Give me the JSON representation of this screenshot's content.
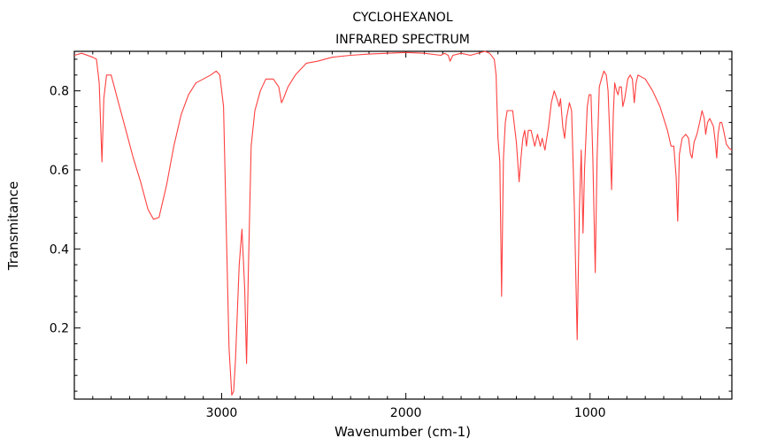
{
  "chart_data": {
    "type": "line",
    "title": "CYCLOHEXANOL",
    "subtitle": "INFRARED SPECTRUM",
    "xlabel": "Wavenumber (cm-1)",
    "ylabel": "Transmitance",
    "xlim": [
      3800,
      230
    ],
    "ylim": [
      0.02,
      0.9
    ],
    "x_reversed": true,
    "grid": false,
    "line_color": "#ff4040",
    "x_ticks": [
      {
        "value": 3000,
        "label": "3000"
      },
      {
        "value": 2000,
        "label": "2000"
      },
      {
        "value": 1000,
        "label": "1000"
      }
    ],
    "y_ticks": [
      {
        "value": 0.2,
        "label": "0.2"
      },
      {
        "value": 0.4,
        "label": "0.4"
      },
      {
        "value": 0.6,
        "label": "0.6"
      },
      {
        "value": 0.8,
        "label": "0.8"
      }
    ],
    "series": [
      {
        "points": [
          [
            3800,
            0.89
          ],
          [
            3760,
            0.895
          ],
          [
            3700,
            0.885
          ],
          [
            3680,
            0.88
          ],
          [
            3665,
            0.82
          ],
          [
            3650,
            0.62
          ],
          [
            3640,
            0.78
          ],
          [
            3625,
            0.84
          ],
          [
            3600,
            0.84
          ],
          [
            3560,
            0.77
          ],
          [
            3520,
            0.7
          ],
          [
            3480,
            0.63
          ],
          [
            3440,
            0.57
          ],
          [
            3400,
            0.5
          ],
          [
            3370,
            0.475
          ],
          [
            3340,
            0.48
          ],
          [
            3300,
            0.56
          ],
          [
            3260,
            0.66
          ],
          [
            3220,
            0.74
          ],
          [
            3180,
            0.79
          ],
          [
            3140,
            0.82
          ],
          [
            3100,
            0.83
          ],
          [
            3060,
            0.84
          ],
          [
            3030,
            0.85
          ],
          [
            3010,
            0.84
          ],
          [
            2990,
            0.76
          ],
          [
            2975,
            0.45
          ],
          [
            2960,
            0.15
          ],
          [
            2945,
            0.03
          ],
          [
            2935,
            0.04
          ],
          [
            2925,
            0.12
          ],
          [
            2905,
            0.36
          ],
          [
            2890,
            0.45
          ],
          [
            2875,
            0.3
          ],
          [
            2865,
            0.11
          ],
          [
            2855,
            0.35
          ],
          [
            2840,
            0.66
          ],
          [
            2820,
            0.75
          ],
          [
            2790,
            0.8
          ],
          [
            2760,
            0.83
          ],
          [
            2720,
            0.83
          ],
          [
            2690,
            0.81
          ],
          [
            2675,
            0.77
          ],
          [
            2665,
            0.78
          ],
          [
            2640,
            0.81
          ],
          [
            2600,
            0.84
          ],
          [
            2540,
            0.87
          ],
          [
            2480,
            0.875
          ],
          [
            2400,
            0.885
          ],
          [
            2300,
            0.89
          ],
          [
            2200,
            0.893
          ],
          [
            2100,
            0.895
          ],
          [
            2000,
            0.897
          ],
          [
            1900,
            0.895
          ],
          [
            1810,
            0.89
          ],
          [
            1790,
            0.895
          ],
          [
            1770,
            0.89
          ],
          [
            1760,
            0.875
          ],
          [
            1745,
            0.89
          ],
          [
            1700,
            0.895
          ],
          [
            1650,
            0.89
          ],
          [
            1570,
            0.9
          ],
          [
            1545,
            0.895
          ],
          [
            1520,
            0.88
          ],
          [
            1510,
            0.84
          ],
          [
            1500,
            0.68
          ],
          [
            1490,
            0.62
          ],
          [
            1480,
            0.28
          ],
          [
            1470,
            0.63
          ],
          [
            1460,
            0.72
          ],
          [
            1450,
            0.75
          ],
          [
            1420,
            0.75
          ],
          [
            1400,
            0.67
          ],
          [
            1385,
            0.57
          ],
          [
            1375,
            0.63
          ],
          [
            1365,
            0.68
          ],
          [
            1355,
            0.7
          ],
          [
            1345,
            0.66
          ],
          [
            1335,
            0.7
          ],
          [
            1320,
            0.7
          ],
          [
            1300,
            0.66
          ],
          [
            1285,
            0.69
          ],
          [
            1270,
            0.66
          ],
          [
            1260,
            0.68
          ],
          [
            1245,
            0.65
          ],
          [
            1235,
            0.68
          ],
          [
            1225,
            0.71
          ],
          [
            1210,
            0.77
          ],
          [
            1195,
            0.8
          ],
          [
            1180,
            0.78
          ],
          [
            1168,
            0.76
          ],
          [
            1160,
            0.78
          ],
          [
            1148,
            0.71
          ],
          [
            1138,
            0.68
          ],
          [
            1128,
            0.73
          ],
          [
            1112,
            0.77
          ],
          [
            1100,
            0.75
          ],
          [
            1085,
            0.5
          ],
          [
            1070,
            0.17
          ],
          [
            1058,
            0.5
          ],
          [
            1048,
            0.65
          ],
          [
            1038,
            0.44
          ],
          [
            1030,
            0.6
          ],
          [
            1015,
            0.76
          ],
          [
            1005,
            0.79
          ],
          [
            995,
            0.79
          ],
          [
            985,
            0.63
          ],
          [
            972,
            0.34
          ],
          [
            962,
            0.63
          ],
          [
            950,
            0.81
          ],
          [
            938,
            0.83
          ],
          [
            925,
            0.85
          ],
          [
            912,
            0.84
          ],
          [
            902,
            0.8
          ],
          [
            892,
            0.68
          ],
          [
            883,
            0.55
          ],
          [
            874,
            0.74
          ],
          [
            866,
            0.82
          ],
          [
            856,
            0.8
          ],
          [
            848,
            0.79
          ],
          [
            840,
            0.81
          ],
          [
            830,
            0.81
          ],
          [
            822,
            0.76
          ],
          [
            812,
            0.78
          ],
          [
            795,
            0.83
          ],
          [
            782,
            0.84
          ],
          [
            770,
            0.83
          ],
          [
            760,
            0.77
          ],
          [
            750,
            0.82
          ],
          [
            740,
            0.84
          ],
          [
            700,
            0.83
          ],
          [
            660,
            0.8
          ],
          [
            620,
            0.76
          ],
          [
            580,
            0.7
          ],
          [
            560,
            0.66
          ],
          [
            545,
            0.66
          ],
          [
            532,
            0.58
          ],
          [
            524,
            0.47
          ],
          [
            515,
            0.64
          ],
          [
            500,
            0.68
          ],
          [
            480,
            0.69
          ],
          [
            465,
            0.68
          ],
          [
            455,
            0.64
          ],
          [
            446,
            0.63
          ],
          [
            435,
            0.67
          ],
          [
            420,
            0.69
          ],
          [
            405,
            0.72
          ],
          [
            392,
            0.75
          ],
          [
            380,
            0.73
          ],
          [
            372,
            0.69
          ],
          [
            362,
            0.72
          ],
          [
            350,
            0.73
          ],
          [
            340,
            0.72
          ],
          [
            330,
            0.71
          ],
          [
            320,
            0.67
          ],
          [
            312,
            0.63
          ],
          [
            305,
            0.69
          ],
          [
            295,
            0.72
          ],
          [
            285,
            0.72
          ],
          [
            275,
            0.7
          ],
          [
            260,
            0.665
          ],
          [
            245,
            0.655
          ],
          [
            230,
            0.65
          ]
        ]
      }
    ]
  }
}
